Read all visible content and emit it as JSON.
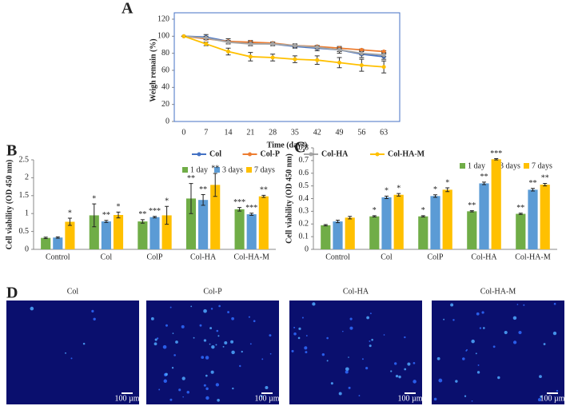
{
  "chart_data": [
    {
      "type": "line",
      "title": "A",
      "x_label": "Time (days)",
      "y_label": "Weigh  remain (%)",
      "x": [
        0,
        7,
        14,
        21,
        28,
        35,
        42,
        49,
        56,
        63
      ],
      "xlim": [
        -3,
        68
      ],
      "xticks": [
        0,
        7,
        14,
        21,
        28,
        35,
        42,
        49,
        56,
        63
      ],
      "ylim": [
        0,
        120
      ],
      "yticks": [
        0,
        20,
        40,
        60,
        80,
        100,
        120
      ],
      "legend": "bottom",
      "series": [
        {
          "name": "Col",
          "color": "#4472c4",
          "values": [
            100,
            99,
            94,
            92,
            91,
            88,
            86,
            84,
            79,
            76
          ],
          "errors": [
            0,
            3,
            3,
            3,
            2,
            2,
            3,
            4,
            4,
            3
          ]
        },
        {
          "name": "Col-P",
          "color": "#ed7d31",
          "values": [
            100,
            97,
            94,
            93,
            92,
            89,
            88,
            86,
            84,
            82
          ],
          "errors": [
            0,
            1,
            1,
            1,
            1,
            1,
            1,
            1,
            1,
            1
          ]
        },
        {
          "name": "Col-HA",
          "color": "#a5a5a5",
          "values": [
            100,
            98,
            93,
            91,
            91,
            89,
            87,
            84,
            80,
            78
          ],
          "errors": [
            0,
            2,
            2,
            2,
            2,
            2,
            2,
            2,
            2,
            2
          ]
        },
        {
          "name": "Col-HA-M",
          "color": "#ffc000",
          "values": [
            100,
            91,
            82,
            76,
            75,
            73,
            72,
            69,
            66,
            64
          ],
          "errors": [
            0,
            2,
            4,
            5,
            4,
            4,
            5,
            6,
            7,
            7
          ]
        }
      ]
    },
    {
      "type": "bar",
      "title": "B",
      "y_label": "Cell viability (OD 450 nm)",
      "categories": [
        "Control",
        "Col",
        "ColP",
        "Col-HA",
        "Col-HA-M"
      ],
      "ylim": [
        0,
        2.5
      ],
      "yticks": [
        0,
        0.5,
        1,
        1.5,
        2,
        2.5
      ],
      "legend": "top-right",
      "series": [
        {
          "name": "1 day",
          "color": "#70ad47",
          "values": [
            0.32,
            0.95,
            0.78,
            1.42,
            1.12
          ],
          "errors": [
            0.02,
            0.32,
            0.05,
            0.42,
            0.05
          ],
          "significance": [
            null,
            "*",
            "**",
            "**",
            "***"
          ]
        },
        {
          "name": "3 days",
          "color": "#5b9bd5",
          "values": [
            0.33,
            0.78,
            0.9,
            1.38,
            0.98
          ],
          "errors": [
            0.02,
            0.03,
            0.02,
            0.15,
            0.03
          ],
          "significance": [
            null,
            "**",
            "***",
            "**",
            "***"
          ]
        },
        {
          "name": "7 days",
          "color": "#ffc000",
          "values": [
            0.77,
            0.96,
            0.95,
            1.8,
            1.48
          ],
          "errors": [
            0.1,
            0.08,
            0.25,
            0.32,
            0.03
          ],
          "significance": [
            "*",
            "*",
            "*",
            "**",
            "**"
          ]
        }
      ]
    },
    {
      "type": "bar",
      "title": "C",
      "y_label": "Cell viability (OD 450 nm)",
      "categories": [
        "Control",
        "Col",
        "ColP",
        "Col-HA",
        "Col-HA-M"
      ],
      "ylim": [
        0,
        0.8
      ],
      "yticks": [
        0,
        0.1,
        0.2,
        0.3,
        0.4,
        0.5,
        0.6,
        0.7,
        0.8
      ],
      "legend": "top-right",
      "series": [
        {
          "name": "1 day",
          "color": "#70ad47",
          "values": [
            0.19,
            0.26,
            0.26,
            0.3,
            0.28
          ],
          "errors": [
            0.005,
            0.005,
            0.005,
            0.005,
            0.005
          ],
          "significance": [
            null,
            "*",
            "*",
            "**",
            "**"
          ]
        },
        {
          "name": "3 days",
          "color": "#5b9bd5",
          "values": [
            0.22,
            0.41,
            0.42,
            0.52,
            0.47
          ],
          "errors": [
            0.01,
            0.01,
            0.01,
            0.01,
            0.01
          ],
          "significance": [
            null,
            "*",
            "*",
            "**",
            "**"
          ]
        },
        {
          "name": "7 days",
          "color": "#ffc000",
          "values": [
            0.25,
            0.43,
            0.47,
            0.71,
            0.51
          ],
          "errors": [
            0.01,
            0.01,
            0.015,
            0.005,
            0.01
          ],
          "significance": [
            null,
            "*",
            "*",
            "***",
            "**"
          ]
        }
      ]
    }
  ],
  "images": {
    "label": "D",
    "titles": [
      "Col",
      "Col-P",
      "Col-HA",
      "Col-HA-M"
    ],
    "scale_bar": "100 µm"
  }
}
